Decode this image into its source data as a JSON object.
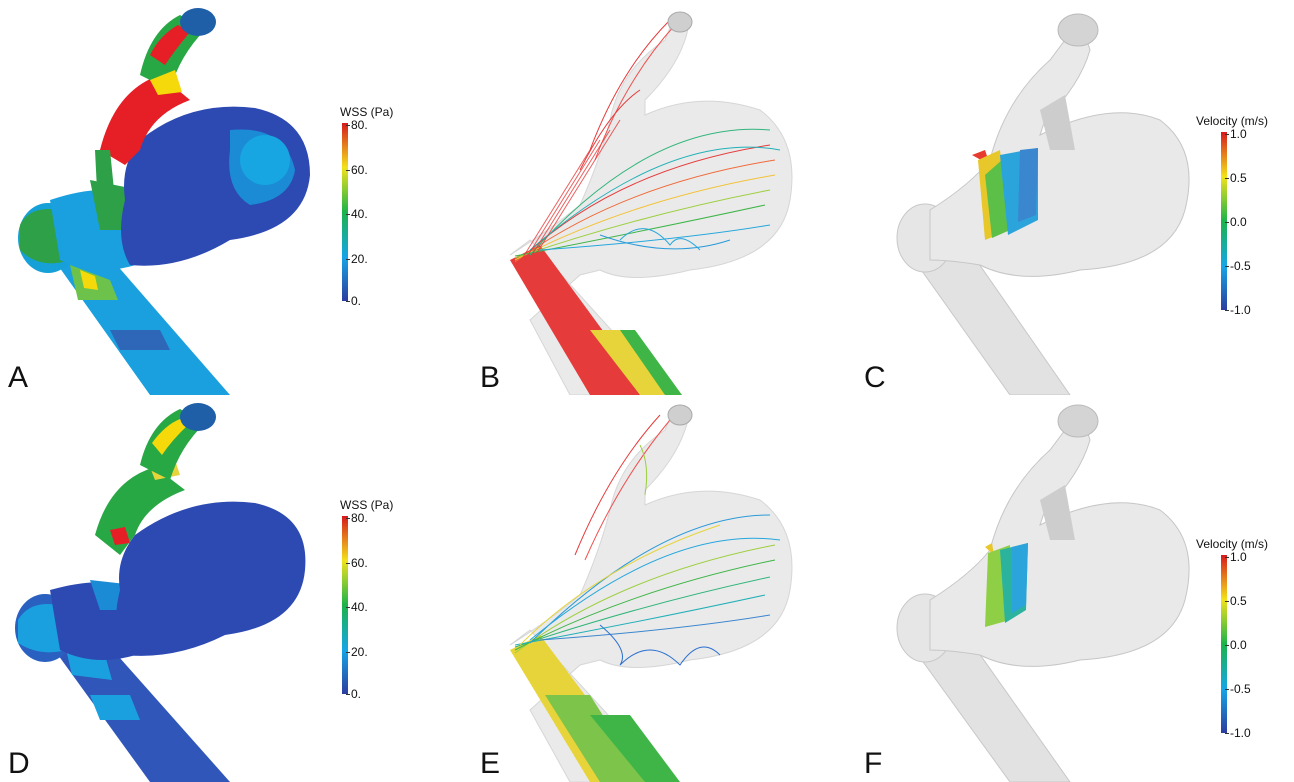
{
  "panels": {
    "a": {
      "letter": "A"
    },
    "b": {
      "letter": "B"
    },
    "c": {
      "letter": "C"
    },
    "d": {
      "letter": "D"
    },
    "e": {
      "letter": "E"
    },
    "f": {
      "letter": "F"
    }
  },
  "wss_legend": {
    "title": "WSS (Pa)",
    "ticks": [
      "80.",
      "60.",
      "40.",
      "20.",
      "0."
    ],
    "colors": [
      "#d7191c",
      "#f2e21a",
      "#1bb34a",
      "#15a6e6",
      "#2c3da0"
    ]
  },
  "velocity_legend": {
    "title": "Velocity (m/s)",
    "ticks": [
      "1.0",
      "0.5",
      "0.0",
      "-0.5",
      "-1.0"
    ],
    "colors": [
      "#d7191c",
      "#f2e21a",
      "#1bb34a",
      "#15a6e6",
      "#2c3da0"
    ]
  }
}
